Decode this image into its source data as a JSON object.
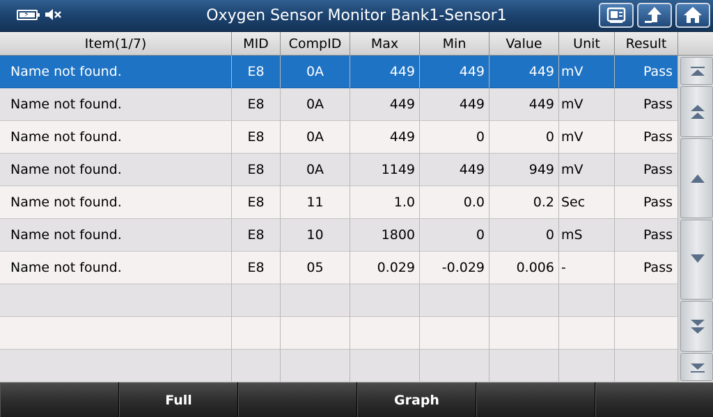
{
  "header": {
    "title": "Oxygen Sensor Monitor Bank1-Sensor1",
    "icons": [
      "battery-charging-icon",
      "speaker-muted-icon",
      "report-icon",
      "back-arrow-icon",
      "home-icon"
    ]
  },
  "table": {
    "columns": {
      "item": "Item(1/7)",
      "mid": "MID",
      "compid": "CompID",
      "max": "Max",
      "min": "Min",
      "value": "Value",
      "unit": "Unit",
      "result": "Result"
    },
    "rows": [
      {
        "item": "Name not found.",
        "mid": "E8",
        "compid": "0A",
        "max": "449",
        "min": "449",
        "value": "449",
        "unit": "mV",
        "result": "Pass"
      },
      {
        "item": "Name not found.",
        "mid": "E8",
        "compid": "0A",
        "max": "449",
        "min": "449",
        "value": "449",
        "unit": "mV",
        "result": "Pass"
      },
      {
        "item": "Name not found.",
        "mid": "E8",
        "compid": "0A",
        "max": "449",
        "min": "0",
        "value": "0",
        "unit": "mV",
        "result": "Pass"
      },
      {
        "item": "Name not found.",
        "mid": "E8",
        "compid": "0A",
        "max": "1149",
        "min": "449",
        "value": "949",
        "unit": "mV",
        "result": "Pass"
      },
      {
        "item": "Name not found.",
        "mid": "E8",
        "compid": "11",
        "max": "1.0",
        "min": "0.0",
        "value": "0.2",
        "unit": "Sec",
        "result": "Pass"
      },
      {
        "item": "Name not found.",
        "mid": "E8",
        "compid": "10",
        "max": "1800",
        "min": "0",
        "value": "0",
        "unit": "mS",
        "result": "Pass"
      },
      {
        "item": "Name not found.",
        "mid": "E8",
        "compid": "05",
        "max": "0.029",
        "min": "-0.029",
        "value": "0.006",
        "unit": "-",
        "result": "Pass"
      },
      {
        "item": "",
        "mid": "",
        "compid": "",
        "max": "",
        "min": "",
        "value": "",
        "unit": "",
        "result": ""
      },
      {
        "item": "",
        "mid": "",
        "compid": "",
        "max": "",
        "min": "",
        "value": "",
        "unit": "",
        "result": ""
      },
      {
        "item": "",
        "mid": "",
        "compid": "",
        "max": "",
        "min": "",
        "value": "",
        "unit": "",
        "result": ""
      }
    ],
    "selected_row": 0
  },
  "scroll": {
    "buttons": [
      "scroll-top-icon",
      "page-up-icon",
      "line-up-icon",
      "line-down-icon",
      "page-down-icon",
      "scroll-bottom-icon"
    ]
  },
  "footer": {
    "buttons": [
      "",
      "Full",
      "",
      "Graph",
      "",
      ""
    ]
  },
  "colors": {
    "title_bar": "#1c426e",
    "selected_row": "#1e73c4",
    "row_odd": "#e4e2e4",
    "row_even": "#f6f1f1",
    "footer": "#2c2c2c"
  }
}
